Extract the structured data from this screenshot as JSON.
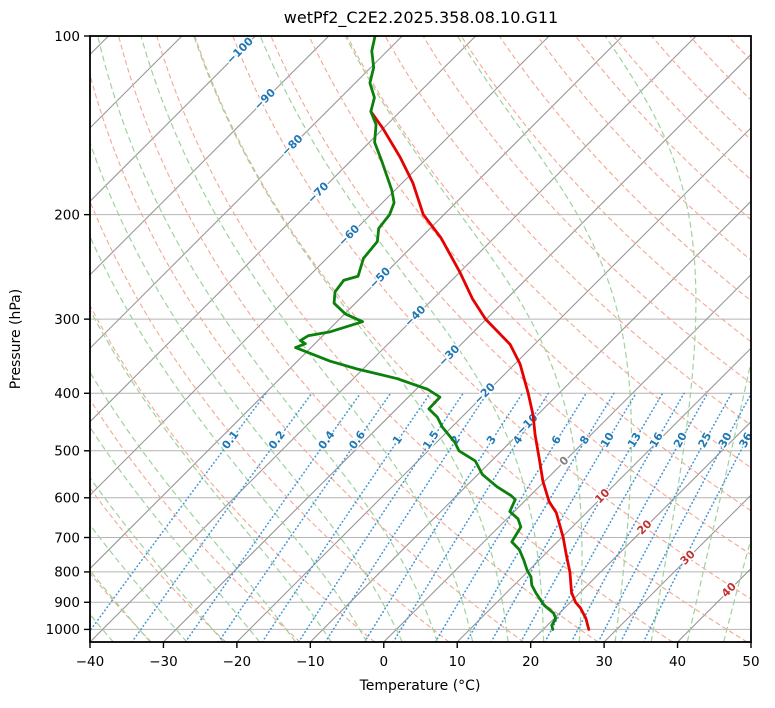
{
  "title": "wetPf2_C2E2.2025.358.08.10.G11",
  "axes": {
    "xlabel": "Temperature (°C)",
    "ylabel": "Pressure (hPa)",
    "x_tick_values": [
      -40,
      -30,
      -20,
      -10,
      0,
      10,
      20,
      30,
      40,
      50
    ],
    "x_tick_labels": [
      "−40",
      "−30",
      "−20",
      "−10",
      "0",
      "10",
      "20",
      "30",
      "40",
      "50"
    ],
    "y_tick_values": [
      100,
      200,
      300,
      400,
      500,
      600,
      700,
      800,
      900,
      1000
    ],
    "y_tick_labels": [
      "100",
      "200",
      "300",
      "400",
      "500",
      "600",
      "700",
      "800",
      "900",
      "1000"
    ],
    "xlim": [
      -40,
      50
    ],
    "pressure_top_hpa": 100,
    "pressure_bottom_hpa": 1050
  },
  "colors": {
    "temperature_line": "#e60000",
    "dewpoint_line": "#0c800c",
    "isotherm": "#979797",
    "pressure_grid": "#b4b4b4",
    "dry_adiabat": "#f3a793",
    "moist_adiabat": "#9ed29e",
    "mixing_ratio": "#4496d6",
    "label_blue": "#1f77b4",
    "label_red": "#c13232",
    "label_gray": "#808080",
    "spine": "#000000"
  },
  "chart_data": {
    "type": "line",
    "subtype": "skewT-logP sounding",
    "title": "wetPf2_C2E2.2025.358.08.10.G11",
    "xlabel": "Temperature (°C)",
    "ylabel": "Pressure (hPa)",
    "x_range_c": [
      -40,
      50
    ],
    "p_range_hpa": [
      1050,
      100
    ],
    "skew": "isotherms at 45 degrees, pressure on log scale",
    "series": [
      {
        "name": "temperature",
        "color": "#e60000",
        "points_p_t": [
          [
            134,
            -74.0
          ],
          [
            143,
            -70.1
          ],
          [
            160,
            -63.8
          ],
          [
            177,
            -58.5
          ],
          [
            200,
            -52.8
          ],
          [
            219,
            -47.2
          ],
          [
            250,
            -40.0
          ],
          [
            277,
            -34.7
          ],
          [
            300,
            -30.1
          ],
          [
            331,
            -23.3
          ],
          [
            357,
            -19.3
          ],
          [
            400,
            -14.2
          ],
          [
            435,
            -10.6
          ],
          [
            470,
            -7.6
          ],
          [
            518,
            -3.6
          ],
          [
            563,
            -0.2
          ],
          [
            609,
            3.4
          ],
          [
            636,
            5.9
          ],
          [
            700,
            10.2
          ],
          [
            749,
            13.0
          ],
          [
            800,
            15.8
          ],
          [
            866,
            18.8
          ],
          [
            900,
            20.7
          ],
          [
            921,
            22.2
          ],
          [
            958,
            24.3
          ],
          [
            1000,
            26.2
          ]
        ]
      },
      {
        "name": "dewpoint",
        "color": "#0c800c",
        "points_p_t": [
          [
            100,
            -83.7
          ],
          [
            106,
            -82.1
          ],
          [
            113,
            -79.6
          ],
          [
            120,
            -78.0
          ],
          [
            127,
            -75.4
          ],
          [
            134,
            -74.0
          ],
          [
            141,
            -71.5
          ],
          [
            151,
            -69.3
          ],
          [
            163,
            -65.6
          ],
          [
            182,
            -60.4
          ],
          [
            191,
            -58.4
          ],
          [
            200,
            -57.4
          ],
          [
            211,
            -57.0
          ],
          [
            222,
            -55.4
          ],
          [
            237,
            -55.0
          ],
          [
            254,
            -53.3
          ],
          [
            258,
            -54.7
          ],
          [
            270,
            -54.3
          ],
          [
            282,
            -52.9
          ],
          [
            294,
            -49.9
          ],
          [
            303,
            -46.5
          ],
          [
            315,
            -49.5
          ],
          [
            320,
            -52.0
          ],
          [
            326,
            -52.4
          ],
          [
            330,
            -51.3
          ],
          [
            335,
            -52.1
          ],
          [
            353,
            -45.6
          ],
          [
            364,
            -40.8
          ],
          [
            378,
            -34.0
          ],
          [
            394,
            -28.4
          ],
          [
            406,
            -25.7
          ],
          [
            425,
            -25.6
          ],
          [
            439,
            -23.3
          ],
          [
            456,
            -21.3
          ],
          [
            484,
            -17.5
          ],
          [
            500,
            -15.8
          ],
          [
            520,
            -12.2
          ],
          [
            548,
            -9.4
          ],
          [
            575,
            -5.7
          ],
          [
            595,
            -2.6
          ],
          [
            604,
            -1.5
          ],
          [
            633,
            -0.6
          ],
          [
            651,
            1.5
          ],
          [
            672,
            3.0
          ],
          [
            712,
            3.8
          ],
          [
            734,
            5.9
          ],
          [
            764,
            7.9
          ],
          [
            794,
            9.7
          ],
          [
            816,
            11.2
          ],
          [
            842,
            12.4
          ],
          [
            869,
            14.1
          ],
          [
            910,
            16.8
          ],
          [
            939,
            19.2
          ],
          [
            958,
            20.2
          ],
          [
            984,
            20.6
          ],
          [
            1000,
            21.3
          ]
        ]
      }
    ],
    "background": {
      "isotherms_c": {
        "start": -120,
        "end": 50,
        "step": 10
      },
      "isotherm_labels": [
        {
          "t": -100,
          "label": "−100",
          "p": 106,
          "color": "#1f77b4"
        },
        {
          "t": -90,
          "label": "−90",
          "p": 128,
          "color": "#1f77b4"
        },
        {
          "t": -80,
          "label": "−80",
          "p": 153,
          "color": "#1f77b4"
        },
        {
          "t": -70,
          "label": "−70",
          "p": 184,
          "color": "#1f77b4"
        },
        {
          "t": -60,
          "label": "−60",
          "p": 217,
          "color": "#1f77b4"
        },
        {
          "t": -50,
          "label": "−50",
          "p": 256,
          "color": "#1f77b4"
        },
        {
          "t": -40,
          "label": "−40",
          "p": 297,
          "color": "#1f77b4"
        },
        {
          "t": -30,
          "label": "−30",
          "p": 346,
          "color": "#1f77b4"
        },
        {
          "t": -20,
          "label": "−20",
          "p": 401,
          "color": "#1f77b4"
        },
        {
          "t": -10,
          "label": "−10",
          "p": 452,
          "color": "#1f77b4"
        },
        {
          "t": 0,
          "label": "0",
          "p": 521,
          "color": "#808080"
        },
        {
          "t": 10,
          "label": "10",
          "p": 597,
          "color": "#c13232"
        },
        {
          "t": 20,
          "label": "20",
          "p": 674,
          "color": "#c13232"
        },
        {
          "t": 30,
          "label": "30",
          "p": 758,
          "color": "#c13232"
        },
        {
          "t": 40,
          "label": "40",
          "p": 859,
          "color": "#c13232"
        }
      ],
      "dry_adiabats_theta_c": {
        "start": -45,
        "end": 195,
        "step": 10
      },
      "moist_adiabats_thetaw_c": {
        "start": -40,
        "end": 45,
        "step": 5
      },
      "mixing_ratio_g_kg": [
        0.1,
        0.2,
        0.4,
        0.6,
        1,
        1.5,
        2,
        3,
        4,
        6,
        8,
        10,
        13,
        16,
        20,
        25,
        30,
        36
      ],
      "mixing_ratio_labels": [
        "0.1",
        "0.2",
        "0.4",
        "0.6",
        "1",
        "1.5",
        "2",
        "3",
        "4",
        "6",
        "8",
        "10",
        "13",
        "16",
        "20",
        "25",
        "30",
        "36"
      ],
      "mixing_ratio_label_pressure_hpa": 480,
      "mixing_ratio_top_pressure_hpa": 400,
      "pressure_gridlines_hpa": [
        100,
        200,
        300,
        400,
        500,
        600,
        700,
        800,
        900,
        1000
      ]
    }
  }
}
